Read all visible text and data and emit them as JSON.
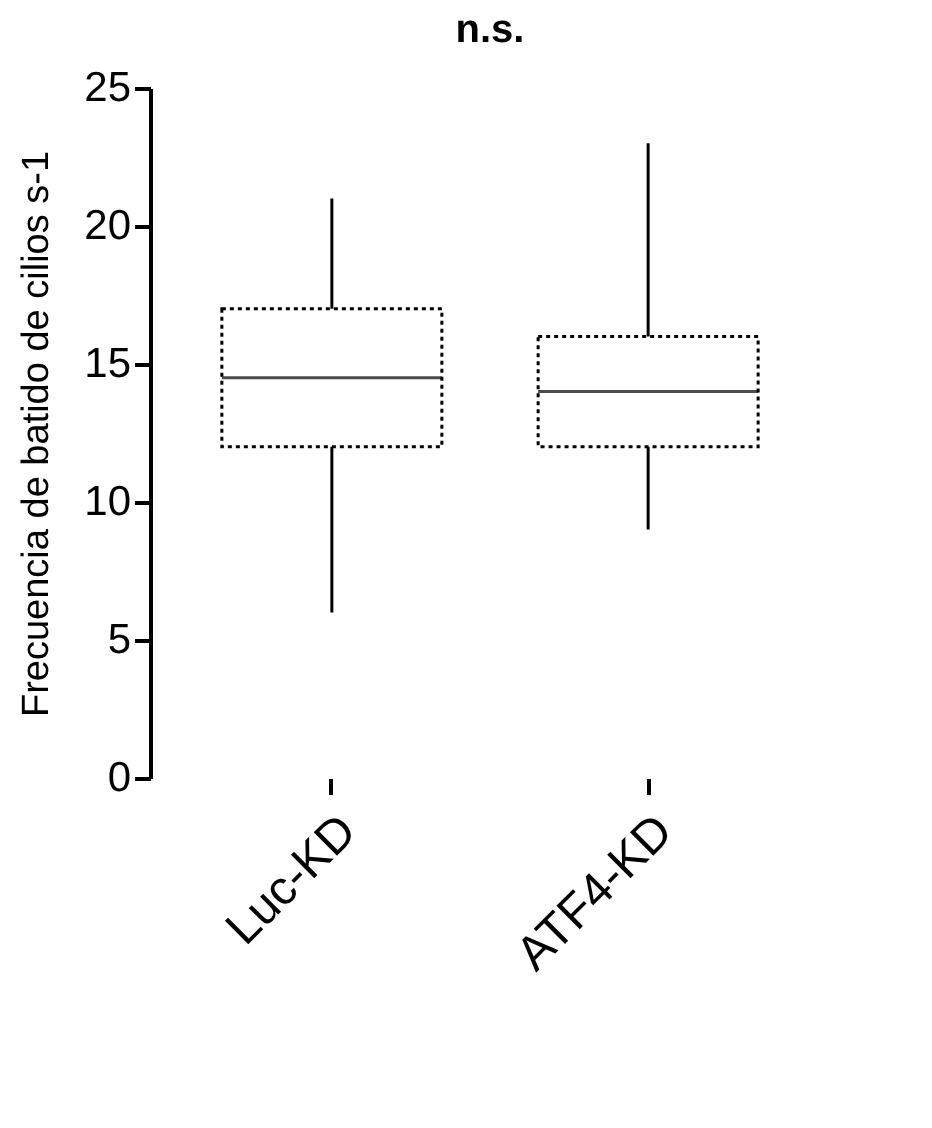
{
  "chart_data": {
    "type": "box",
    "ylabel": "Frecuencia de batido de cilios s-1",
    "categories": [
      "Luc-KD",
      "ATF4-KD"
    ],
    "boxes": [
      {
        "low": 6,
        "q1": 12,
        "median": 14.5,
        "q3": 17,
        "high": 21
      },
      {
        "low": 9,
        "q1": 12,
        "median": 14,
        "q3": 16,
        "high": 23
      }
    ],
    "ylim": [
      0,
      25
    ],
    "yticks": [
      0,
      5,
      10,
      15,
      20,
      25
    ],
    "grid": false,
    "annotations": [
      "n.s."
    ]
  }
}
